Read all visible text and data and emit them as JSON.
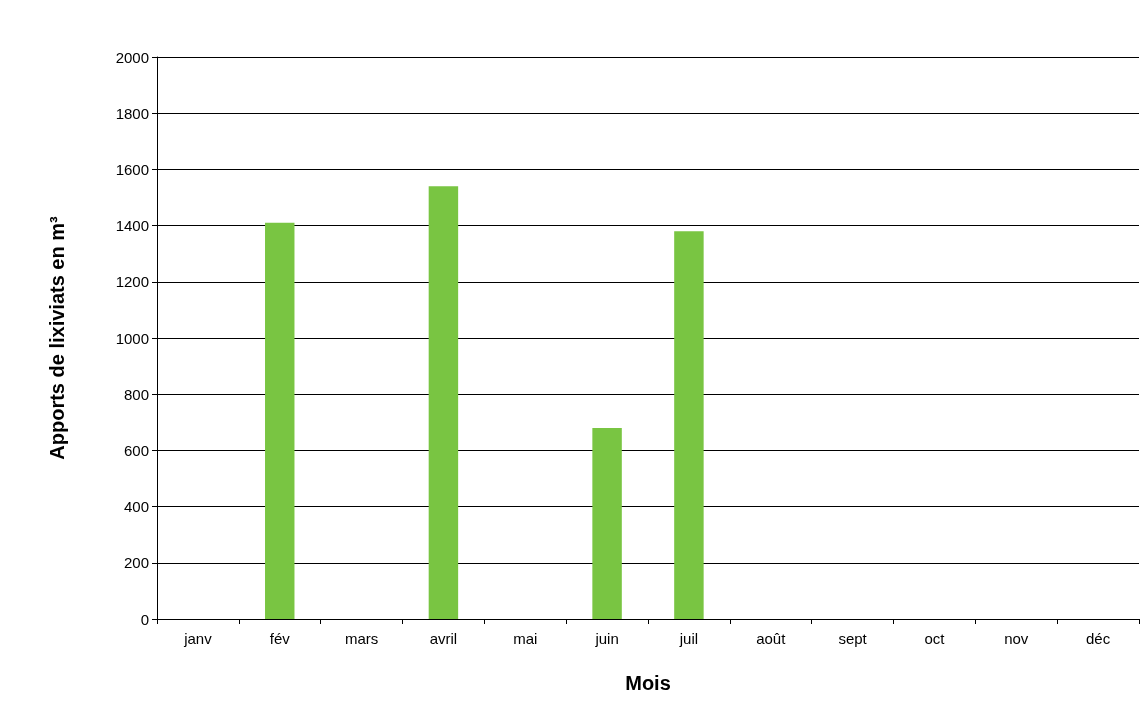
{
  "chart_data": {
    "type": "bar",
    "xlabel": "Mois",
    "ylabel": "Apports de lixiviats en m³",
    "categories": [
      "janv",
      "fév",
      "mars",
      "avril",
      "mai",
      "juin",
      "juil",
      "août",
      "sept",
      "oct",
      "nov",
      "déc"
    ],
    "values": [
      null,
      1410,
      null,
      1540,
      null,
      680,
      1380,
      null,
      null,
      null,
      null,
      null
    ],
    "color": "#79c542",
    "ylim": [
      0,
      2000
    ],
    "yticks": [
      0,
      200,
      400,
      600,
      800,
      1000,
      1200,
      1400,
      1600,
      1800,
      2000
    ],
    "grid": "y"
  }
}
